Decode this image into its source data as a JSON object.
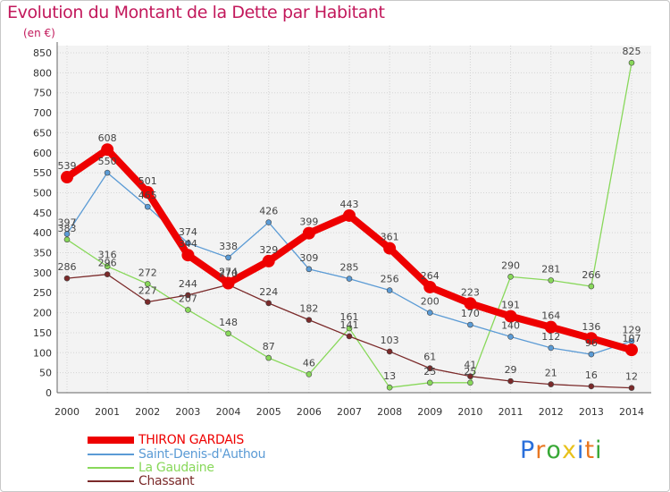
{
  "title": "Evolution du Montant de la Dette par Habitant",
  "subtitle": "(en €)",
  "logo": {
    "text": "Proxiti",
    "colors": [
      "#2a6fdb",
      "#e87722",
      "#38a836",
      "#e8c21c",
      "#2a6fdb",
      "#e87722",
      "#38a836"
    ]
  },
  "chart_data": {
    "type": "line",
    "x": [
      "2000",
      "2001",
      "2002",
      "2003",
      "2004",
      "2005",
      "2006",
      "2007",
      "2008",
      "2009",
      "2010",
      "2011",
      "2012",
      "2013",
      "2014"
    ],
    "ylim": [
      0,
      850
    ],
    "yticks": [
      "0",
      "50",
      "100",
      "150",
      "200",
      "250",
      "300",
      "350",
      "400",
      "450",
      "500",
      "550",
      "600",
      "650",
      "700",
      "750",
      "800",
      "850"
    ],
    "grid": true,
    "legend_position": "bottom-left",
    "series": [
      {
        "name": "THIRON GARDAIS",
        "color": "#ee0000",
        "values": [
          539,
          608,
          501,
          344,
          274,
          329,
          399,
          443,
          361,
          264,
          223,
          191,
          164,
          136,
          107
        ],
        "labels": [
          "539",
          "608",
          "501",
          "344",
          "274",
          "329",
          "399",
          "443",
          "361",
          "264",
          "223",
          "191",
          "164",
          "136",
          "107"
        ]
      },
      {
        "name": "Saint-Denis-d'Authou",
        "color": "#5b9bd5",
        "values": [
          397,
          550,
          465,
          374,
          338,
          426,
          309,
          285,
          256,
          200,
          170,
          140,
          112,
          96,
          129
        ],
        "labels": [
          "397",
          "550",
          "465",
          "374",
          "338",
          "426",
          "309",
          "285",
          "256",
          "200",
          "170",
          "140",
          "112",
          "96",
          "129"
        ]
      },
      {
        "name": "La Gaudaine",
        "color": "#88d85a",
        "values": [
          383,
          316,
          272,
          207,
          148,
          87,
          46,
          161,
          13,
          25,
          25,
          290,
          281,
          266,
          825
        ],
        "labels": [
          "383",
          "316",
          "272",
          "207",
          "148",
          "87",
          "46",
          "161",
          "13",
          "25",
          "25",
          "290",
          "281",
          "266",
          "825"
        ]
      },
      {
        "name": "Chassant",
        "color": "#7b2a2a",
        "values": [
          286,
          296,
          227,
          244,
          270,
          224,
          182,
          141,
          103,
          61,
          41,
          29,
          21,
          16,
          12
        ],
        "labels": [
          "286",
          "296",
          "227",
          "244",
          "270",
          "224",
          "182",
          "141",
          "103",
          "61",
          "41",
          "29",
          "21",
          "16",
          "12"
        ]
      }
    ]
  }
}
